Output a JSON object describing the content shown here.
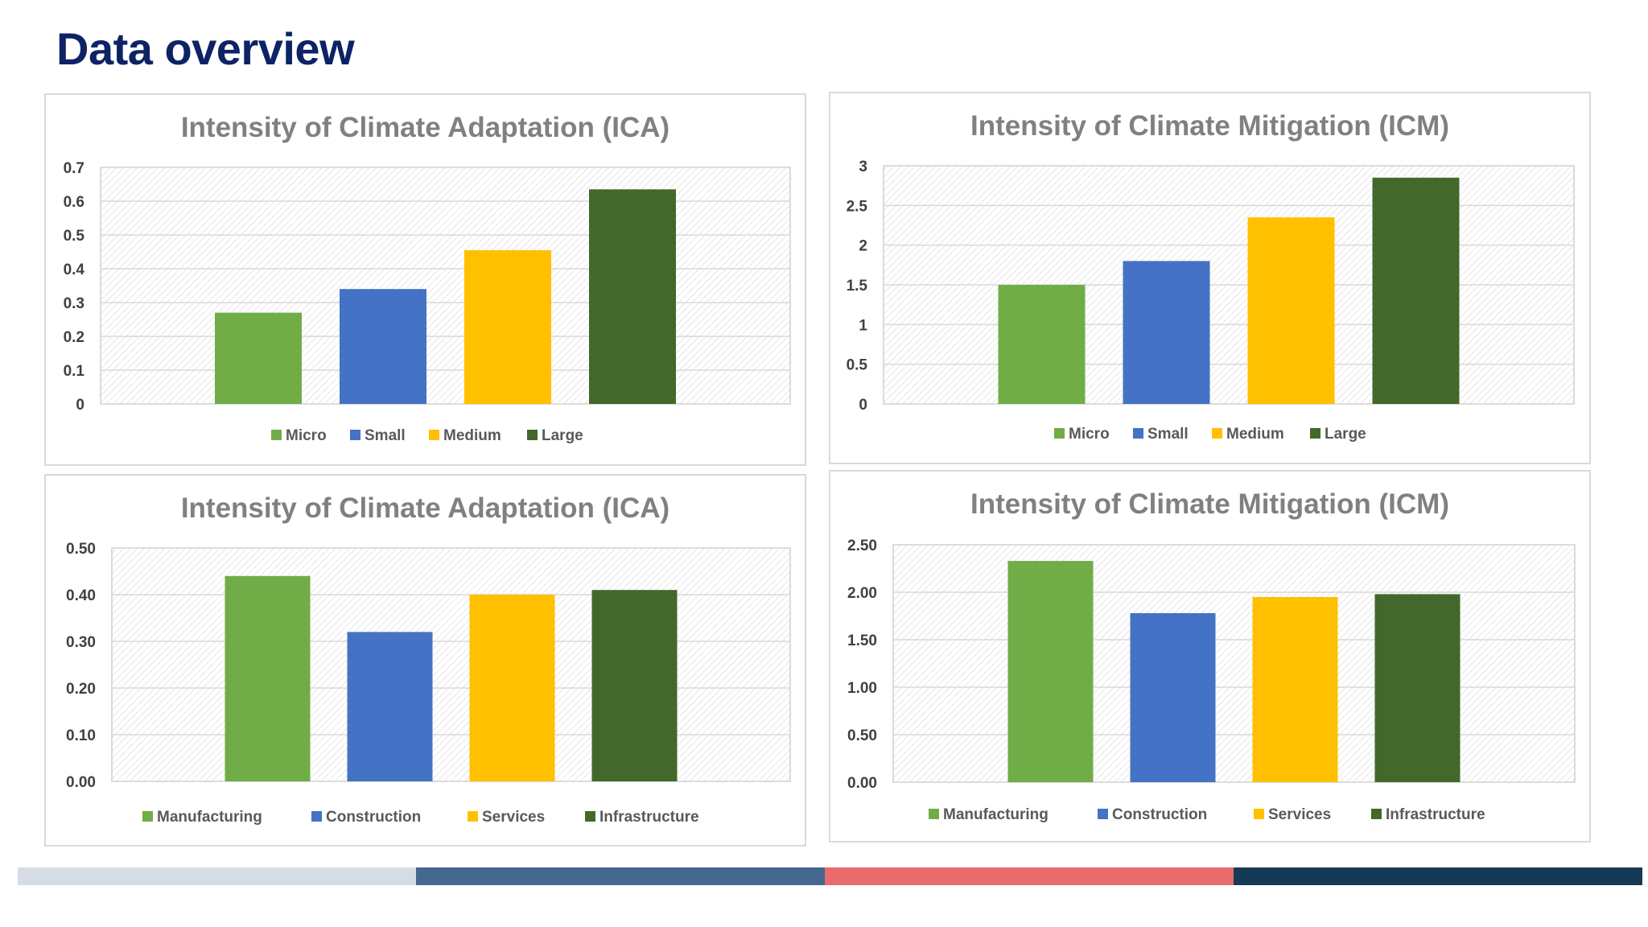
{
  "page": {
    "title": "Data overview"
  },
  "colors": {
    "micro": "#70ad47",
    "small": "#4472c4",
    "medium": "#ffc000",
    "large": "#43682b",
    "title": "#0d2366",
    "bottom_bar": [
      "#d6dce4",
      "#44688f",
      "#e96b6b",
      "#163a56"
    ]
  },
  "chart_data": [
    {
      "type": "bar",
      "title": "Intensity of Climate Adaptation (ICA)",
      "xlabel": "",
      "ylabel": "",
      "ylim": [
        0,
        0.7
      ],
      "ticks": [
        "0",
        "0.1",
        "0.2",
        "0.3",
        "0.4",
        "0.5",
        "0.6",
        "0.7"
      ],
      "categories": [
        "Micro",
        "Small",
        "Medium",
        "Large"
      ],
      "values": [
        0.27,
        0.34,
        0.455,
        0.635
      ],
      "colors": [
        "#70ad47",
        "#4472c4",
        "#ffc000",
        "#43682b"
      ],
      "legend_position": "bottom",
      "grid": true
    },
    {
      "type": "bar",
      "title": "Intensity of Climate Mitigation (ICM)",
      "xlabel": "",
      "ylabel": "",
      "ylim": [
        0,
        3
      ],
      "ticks": [
        "0",
        "0.5",
        "1",
        "1.5",
        "2",
        "2.5",
        "3"
      ],
      "categories": [
        "Micro",
        "Small",
        "Medium",
        "Large"
      ],
      "values": [
        1.5,
        1.8,
        2.35,
        2.85
      ],
      "colors": [
        "#70ad47",
        "#4472c4",
        "#ffc000",
        "#43682b"
      ],
      "legend_position": "bottom",
      "grid": true
    },
    {
      "type": "bar",
      "title": "Intensity of Climate Adaptation (ICA)",
      "xlabel": "",
      "ylabel": "",
      "ylim": [
        0,
        0.5
      ],
      "ticks": [
        "0.00",
        "0.10",
        "0.20",
        "0.30",
        "0.40",
        "0.50"
      ],
      "categories": [
        "Manufacturing",
        "Construction",
        "Services",
        "Infrastructure"
      ],
      "values": [
        0.44,
        0.32,
        0.4,
        0.41
      ],
      "colors": [
        "#70ad47",
        "#4472c4",
        "#ffc000",
        "#43682b"
      ],
      "legend_position": "bottom",
      "grid": true
    },
    {
      "type": "bar",
      "title": "Intensity of Climate Mitigation (ICM)",
      "xlabel": "",
      "ylabel": "",
      "ylim": [
        0,
        2.5
      ],
      "ticks": [
        "0.00",
        "0.50",
        "1.00",
        "1.50",
        "2.00",
        "2.50"
      ],
      "categories": [
        "Manufacturing",
        "Construction",
        "Services",
        "Infrastructure"
      ],
      "values": [
        2.33,
        1.78,
        1.95,
        1.98
      ],
      "colors": [
        "#70ad47",
        "#4472c4",
        "#ffc000",
        "#43682b"
      ],
      "legend_position": "bottom",
      "grid": true
    }
  ]
}
